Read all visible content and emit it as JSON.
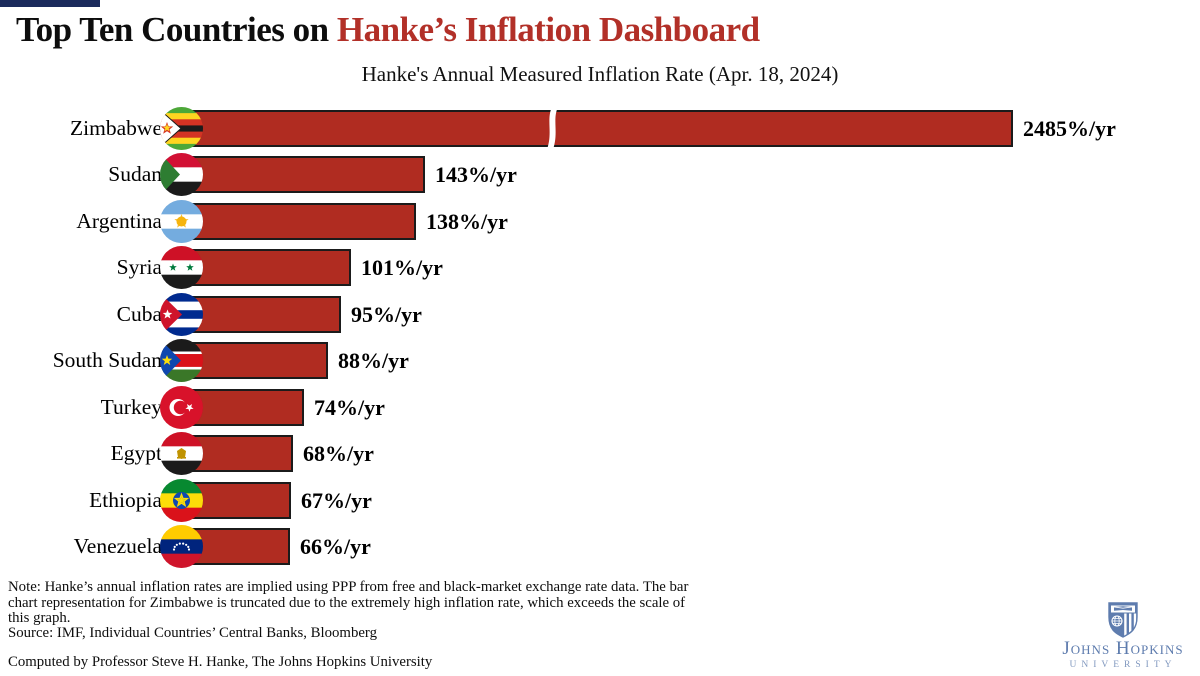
{
  "header": {
    "title_prefix": "Top Ten Countries on ",
    "title_highlight": "Hanke’s Inflation Dashboard",
    "accent_color": "#1b2a5c",
    "title_highlight_color": "#b23028"
  },
  "chart_data": {
    "type": "bar",
    "orientation": "horizontal",
    "title": "Top Ten Countries on Hanke’s Inflation Dashboard",
    "subtitle": "Hanke's Annual Measured Inflation Rate (Apr. 18, 2024)",
    "unit": "%/yr",
    "bar_color": "#b02c21",
    "grid": false,
    "legend": false,
    "categories": [
      "Zimbabwe",
      "Sudan",
      "Argentina",
      "Syria",
      "Cuba",
      "South Sudan",
      "Turkey",
      "Egypt",
      "Ethiopia",
      "Venezuela"
    ],
    "values": [
      2485,
      143,
      138,
      101,
      95,
      88,
      74,
      68,
      67,
      66
    ],
    "rows": [
      {
        "country": "Zimbabwe",
        "value": 2485,
        "label": "2485%/yr",
        "flag": "zimbabwe-flag-icon",
        "truncated": true
      },
      {
        "country": "Sudan",
        "value": 143,
        "label": "143%/yr",
        "flag": "sudan-flag-icon",
        "truncated": false
      },
      {
        "country": "Argentina",
        "value": 138,
        "label": "138%/yr",
        "flag": "argentina-flag-icon",
        "truncated": false
      },
      {
        "country": "Syria",
        "value": 101,
        "label": "101%/yr",
        "flag": "syria-flag-icon",
        "truncated": false
      },
      {
        "country": "Cuba",
        "value": 95,
        "label": "95%/yr",
        "flag": "cuba-flag-icon",
        "truncated": false
      },
      {
        "country": "South Sudan",
        "value": 88,
        "label": "88%/yr",
        "flag": "south-sudan-flag-icon",
        "truncated": false
      },
      {
        "country": "Turkey",
        "value": 74,
        "label": "74%/yr",
        "flag": "turkey-flag-icon",
        "truncated": false
      },
      {
        "country": "Egypt",
        "value": 68,
        "label": "68%/yr",
        "flag": "egypt-flag-icon",
        "truncated": false
      },
      {
        "country": "Ethiopia",
        "value": 67,
        "label": "67%/yr",
        "flag": "ethiopia-flag-icon",
        "truncated": false
      },
      {
        "country": "Venezuela",
        "value": 66,
        "label": "66%/yr",
        "flag": "venezuela-flag-icon",
        "truncated": false
      }
    ]
  },
  "footer": {
    "note": "Note: Hanke’s annual inflation rates are implied using PPP from free and black-market exchange rate data. The bar chart representation for Zimbabwe is truncated due to the extremely high inflation rate, which exceeds the scale of this graph.",
    "source": "Source: IMF, Individual Countries’ Central Banks, Bloomberg",
    "computed": "Computed by Professor Steve H. Hanke, The Johns Hopkins University"
  },
  "logo": {
    "name": "Johns Hopkins",
    "sub": "University",
    "color": "#5e7cae"
  }
}
